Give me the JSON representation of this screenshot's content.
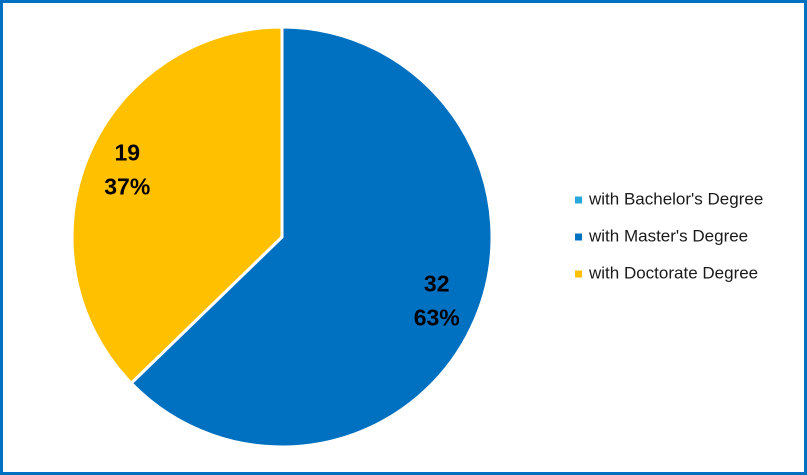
{
  "chart_data": {
    "type": "pie",
    "categories": [
      "with Bachelor's Degree",
      "with Master's Degree",
      "with Doctorate Degree"
    ],
    "values": [
      0,
      32,
      19
    ],
    "percentages": [
      null,
      63,
      37
    ],
    "percent_labels": [
      null,
      "63%",
      "37%"
    ],
    "colors": [
      "#2aa8dc",
      "#0070c0",
      "#ffc000"
    ],
    "legend": "right"
  }
}
